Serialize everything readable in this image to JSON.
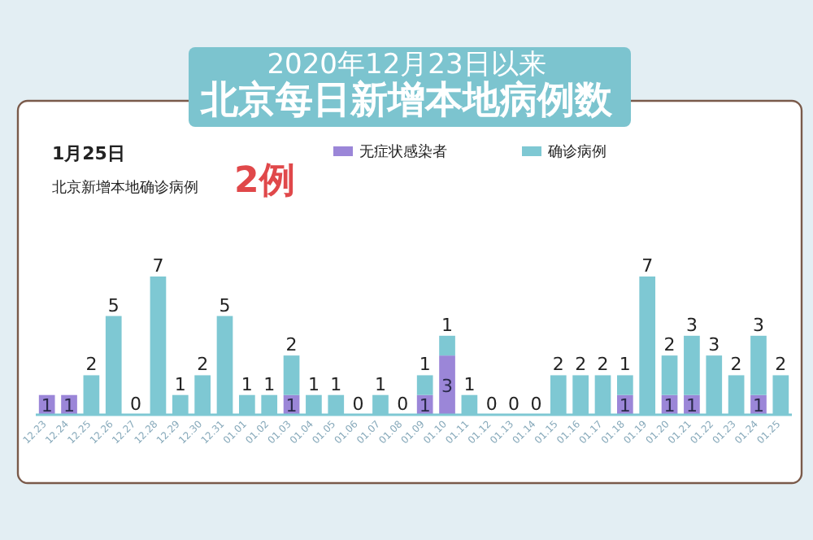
{
  "chart_data": {
    "type": "bar",
    "title": "2020年12月23日以来",
    "subtitle": "北京每日新增本地病例数",
    "annotations": [
      "1月25日",
      "北京新增本地确诊病例",
      "2例"
    ],
    "categories": [
      "12.23",
      "12.24",
      "12.25",
      "12.26",
      "12.27",
      "12.28",
      "12.29",
      "12.30",
      "12.31",
      "01.01",
      "01.02",
      "01.03",
      "01.04",
      "01.05",
      "01.06",
      "01.07",
      "01.08",
      "01.09",
      "01.10",
      "01.11",
      "01.12",
      "01.13",
      "01.14",
      "01.15",
      "01.16",
      "01.17",
      "01.18",
      "01.19",
      "01.20",
      "01.21",
      "01.22",
      "01.23",
      "01.24",
      "01.25"
    ],
    "stacked": true,
    "legend": "top right",
    "grid": false,
    "series": [
      {
        "name": "无症状感染者",
        "color": "#9b86d8",
        "values": [
          1,
          1,
          0,
          0,
          0,
          0,
          0,
          0,
          0,
          0,
          0,
          1,
          0,
          0,
          0,
          0,
          0,
          1,
          3,
          0,
          0,
          0,
          0,
          0,
          0,
          0,
          1,
          0,
          1,
          1,
          0,
          0,
          1,
          0
        ],
        "value_labels": [
          "1",
          "1",
          null,
          null,
          null,
          null,
          null,
          null,
          null,
          null,
          null,
          "1",
          null,
          null,
          null,
          null,
          null,
          "1",
          "3",
          null,
          null,
          null,
          null,
          null,
          null,
          null,
          "1",
          null,
          "1",
          "1",
          null,
          null,
          "1",
          null
        ]
      },
      {
        "name": "确诊病例",
        "color": "#7ec8d3",
        "values": [
          0,
          0,
          2,
          5,
          0,
          7,
          1,
          2,
          5,
          1,
          1,
          2,
          1,
          1,
          0,
          1,
          0,
          1,
          1,
          1,
          0,
          0,
          0,
          2,
          2,
          2,
          1,
          7,
          2,
          3,
          3,
          2,
          3,
          2
        ],
        "value_labels": [
          null,
          null,
          "2",
          "5",
          "0",
          "7",
          "1",
          "2",
          "5",
          "1",
          "1",
          "2",
          "1",
          "1",
          "0",
          "1",
          "0",
          "1",
          "1",
          "1",
          "0",
          "0",
          "0",
          "2",
          "2",
          "2",
          "1",
          "7",
          "2",
          "3",
          "3",
          "2",
          "3",
          "2"
        ]
      }
    ]
  }
}
